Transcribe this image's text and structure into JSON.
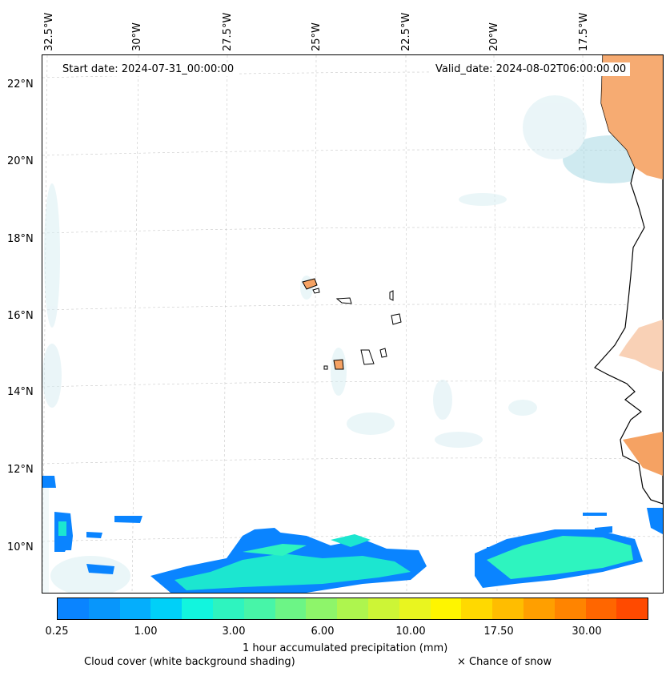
{
  "map": {
    "start_date": "Start date: 2024-07-31_00:00:00",
    "valid_date": "Valid_date: 2024-08-02T06:00:00.00",
    "lon_labels": [
      "32.5°W",
      "30°W",
      "27.5°W",
      "25°W",
      "22.5°W",
      "20°W",
      "17.5°W"
    ],
    "lat_labels": [
      "22°N",
      "20°N",
      "18°N",
      "16°N",
      "14°N",
      "12°N",
      "10°N"
    ],
    "land_color": "#f5a263",
    "precip_color_light": "#1ce6d0",
    "precip_color_dark": "#0a8cff"
  },
  "colorbar": {
    "colors": [
      "#0a84ff",
      "#0896fb",
      "#05aefc",
      "#00d0f8",
      "#12f5de",
      "#2ef4bf",
      "#47f5a8",
      "#6cf586",
      "#8ef56a",
      "#aef54e",
      "#cdf536",
      "#e9f51f",
      "#fef500",
      "#ffd900",
      "#ffbd00",
      "#ff9f00",
      "#ff8400",
      "#ff6600",
      "#ff4a00"
    ],
    "ticks": [
      "0.25",
      "1.00",
      "3.00",
      "6.00",
      "10.00",
      "17.50",
      "30.00"
    ],
    "title": "1 hour accumulated precipitation (mm)"
  },
  "legend": {
    "cloud": "Cloud cover (white background shading)",
    "snow": "× Chance of snow"
  }
}
